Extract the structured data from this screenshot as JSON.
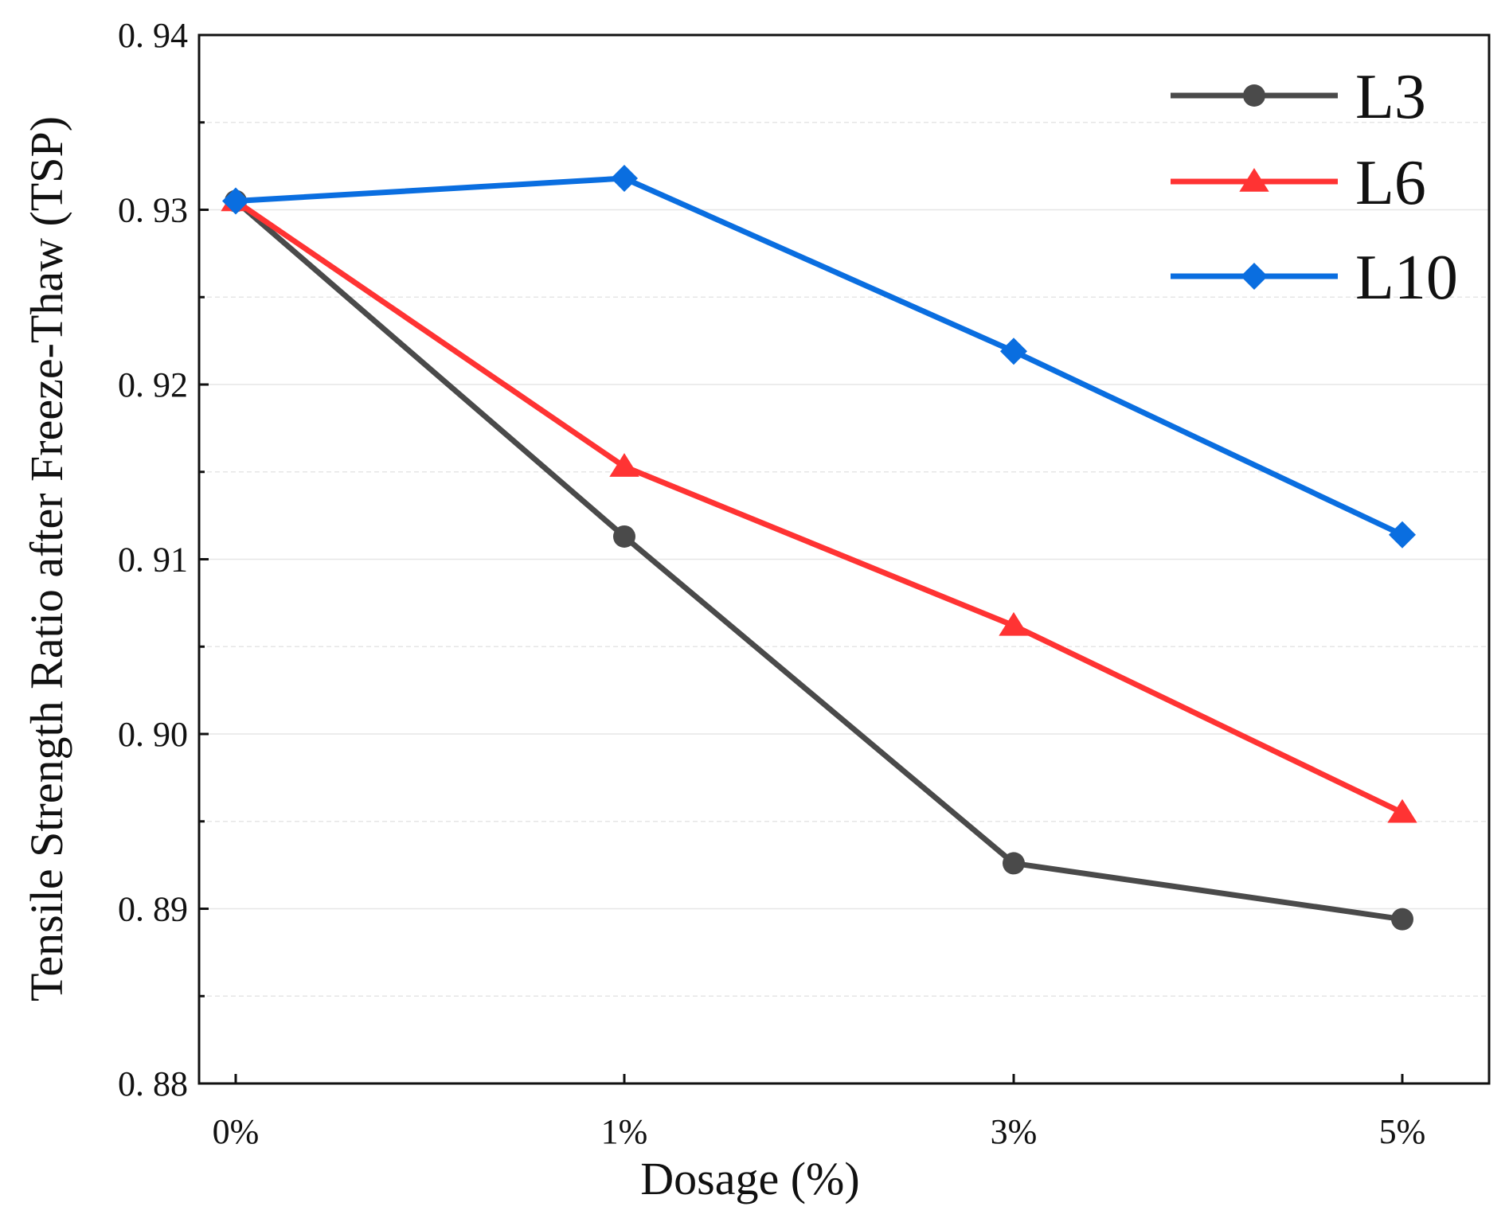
{
  "chart_data": {
    "type": "line",
    "title": "",
    "xlabel": "Dosage (%)",
    "ylabel": "Tensile Strength Ratio after Freeze-Thaw (TSP)",
    "categories": [
      "0%",
      "1%",
      "3%",
      "5%"
    ],
    "ylim": [
      0.88,
      0.94
    ],
    "yticks": [
      0.88,
      0.89,
      0.9,
      0.91,
      0.92,
      0.93,
      0.94
    ],
    "ytick_labels": [
      "0. 88",
      "0. 89",
      "0. 90",
      "0. 91",
      "0. 92",
      "0. 93",
      "0. 94"
    ],
    "minor_grid": true,
    "legend_position": "top-right",
    "series": [
      {
        "name": "L3",
        "color": "#4a4a4a",
        "marker": "circle",
        "values": [
          0.9305,
          0.9113,
          0.8926,
          0.8894
        ]
      },
      {
        "name": "L6",
        "color": "#ff3333",
        "marker": "triangle",
        "values": [
          0.9305,
          0.9153,
          0.9062,
          0.8955
        ]
      },
      {
        "name": "L10",
        "color": "#0a6ee0",
        "marker": "diamond",
        "values": [
          0.9305,
          0.9318,
          0.9219,
          0.9114
        ]
      }
    ]
  }
}
